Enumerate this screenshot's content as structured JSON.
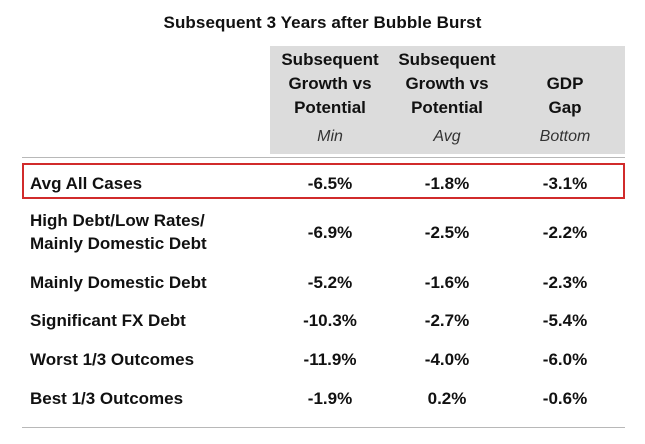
{
  "chart_data": {
    "type": "table",
    "title": "Subsequent 3 Years after Bubble Burst",
    "columns": [
      {
        "header_lines": [
          "Subsequent",
          "Growth vs",
          "Potential"
        ],
        "sub": "Min"
      },
      {
        "header_lines": [
          "Subsequent",
          "Growth vs",
          "Potential"
        ],
        "sub": "Avg"
      },
      {
        "header_lines": [
          "GDP",
          "Gap"
        ],
        "sub": "Bottom"
      }
    ],
    "rows": [
      {
        "label_lines": [
          "Avg All Cases"
        ],
        "values": [
          "-6.5%",
          "-1.8%",
          "-3.1%"
        ],
        "highlighted": true
      },
      {
        "label_lines": [
          "High Debt/Low Rates/",
          "Mainly Domestic Debt"
        ],
        "values": [
          "-6.9%",
          "-2.5%",
          "-2.2%"
        ],
        "highlighted": false
      },
      {
        "label_lines": [
          "Mainly Domestic Debt"
        ],
        "values": [
          "-5.2%",
          "-1.6%",
          "-2.3%"
        ],
        "highlighted": false
      },
      {
        "label_lines": [
          "Significant FX Debt"
        ],
        "values": [
          "-10.3%",
          "-2.7%",
          "-5.4%"
        ],
        "highlighted": false
      },
      {
        "label_lines": [
          "Worst 1/3 Outcomes"
        ],
        "values": [
          "-11.9%",
          "-4.0%",
          "-6.0%"
        ],
        "highlighted": false
      },
      {
        "label_lines": [
          "Best 1/3 Outcomes"
        ],
        "values": [
          "-1.9%",
          "0.2%",
          "-0.6%"
        ],
        "highlighted": false
      }
    ],
    "colors": {
      "header_bg": "#dcdcdc",
      "highlight_border": "#d12b2b",
      "rule": "#b8b8b8",
      "text": "#111111"
    }
  }
}
